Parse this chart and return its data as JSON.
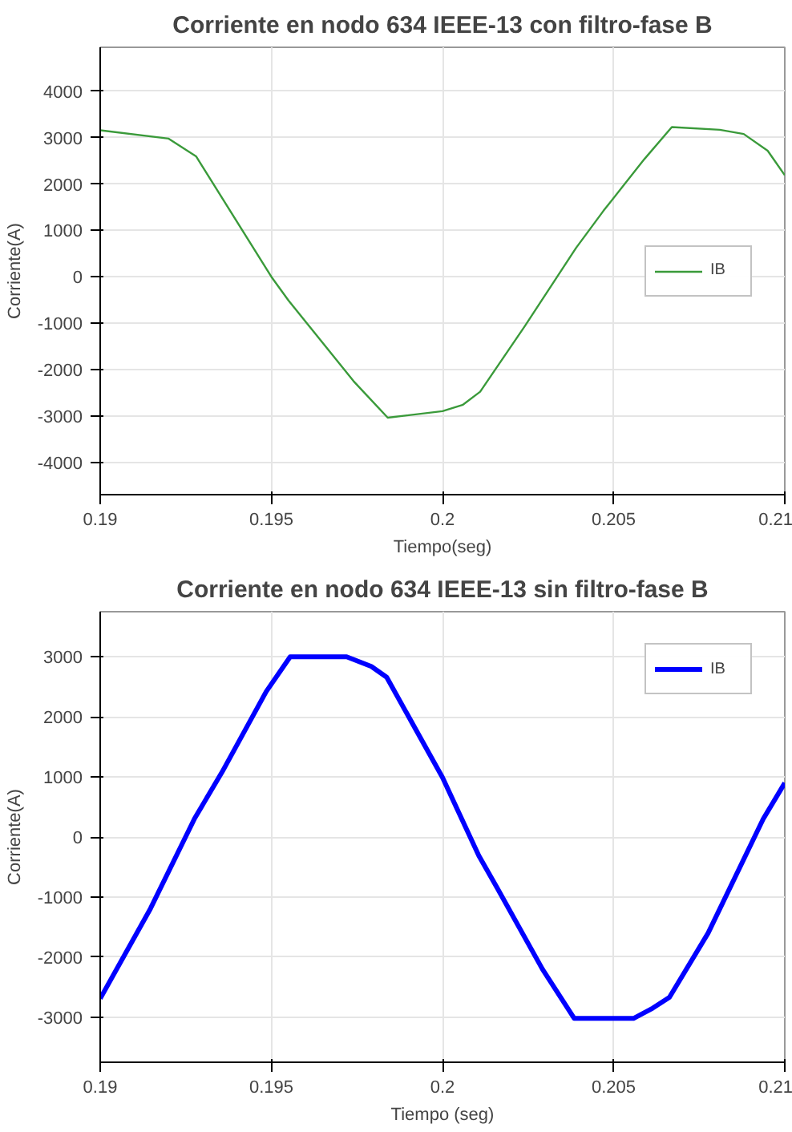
{
  "chart_data": [
    {
      "type": "line",
      "title": "Corriente en nodo 634 IEEE-13 con filtro-fase B",
      "xlabel": "Tiempo(seg)",
      "ylabel": "Corriente(A)",
      "xlim": [
        0.19,
        0.21
      ],
      "xticks": [
        0.19,
        0.195,
        0.2,
        0.205,
        0.21
      ],
      "ylim": [
        -4700,
        4950
      ],
      "yticks": [
        -4000,
        -3000,
        -2000,
        -1000,
        0,
        1000,
        2000,
        3000,
        4000
      ],
      "grid": true,
      "legend": "right",
      "series": [
        {
          "name": "IB",
          "color": "#3a9a3a",
          "x": [
            0.19,
            0.192,
            0.1928,
            0.195,
            0.1955,
            0.1974,
            0.1984,
            0.2,
            0.2006,
            0.2011,
            0.2024,
            0.2039,
            0.2047,
            0.2059,
            0.2067,
            0.2081,
            0.2088,
            0.2095,
            0.21
          ],
          "values": [
            3160,
            2980,
            2600,
            0,
            -510,
            -2250,
            -3040,
            -2900,
            -2760,
            -2480,
            -1070,
            620,
            1420,
            2540,
            3230,
            3170,
            3080,
            2720,
            2190
          ]
        }
      ]
    },
    {
      "type": "line",
      "title": "Corriente en nodo 634 IEEE-13 sin filtro-fase B",
      "xlabel": "Tiempo (seg)",
      "ylabel": "Corriente(A)",
      "xlim": [
        0.19,
        0.21
      ],
      "xticks": [
        0.19,
        0.195,
        0.2,
        0.205,
        0.21
      ],
      "ylim": [
        -3750,
        3750
      ],
      "yticks": [
        -3000,
        -2000,
        -1000,
        0,
        1000,
        2000,
        3000
      ],
      "grid": true,
      "legend": "top right",
      "series": [
        {
          "name": "IB",
          "color": "#0000ff",
          "x": [
            0.19,
            0.19147,
            0.19276,
            0.19356,
            0.19485,
            0.19555,
            0.1972,
            0.19792,
            0.19837,
            0.2,
            0.20106,
            0.20161,
            0.20292,
            0.20385,
            0.20558,
            0.20614,
            0.20663,
            0.20776,
            0.20937,
            0.21
          ],
          "values": [
            -2690,
            -1190,
            310,
            1080,
            2420,
            3000,
            3000,
            2840,
            2660,
            990,
            -310,
            -860,
            -2200,
            -3020,
            -3020,
            -2850,
            -2670,
            -1600,
            300,
            900
          ]
        }
      ]
    }
  ]
}
